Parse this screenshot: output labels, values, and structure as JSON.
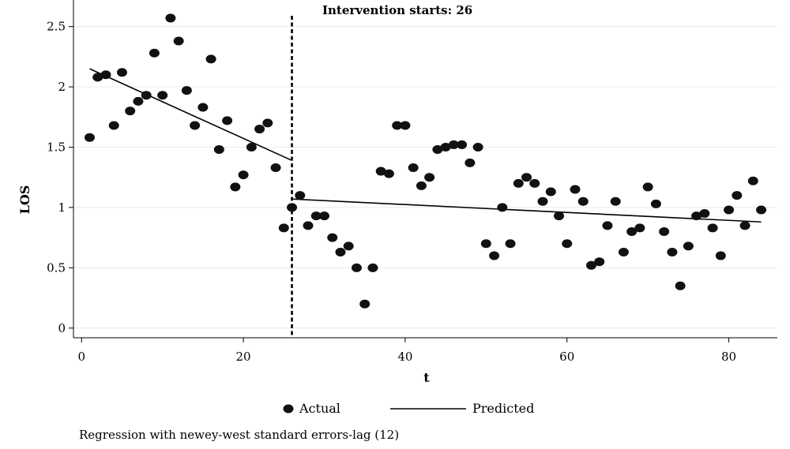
{
  "chart_data": {
    "type": "scatter",
    "title": "",
    "xlabel": "t",
    "ylabel": "LOS",
    "xlim": [
      -1,
      86
    ],
    "ylim": [
      -0.08,
      2.72
    ],
    "x_ticks": [
      0,
      20,
      40,
      60,
      80
    ],
    "x_tick_labels": [
      "0",
      "20",
      "40",
      "60",
      "80"
    ],
    "y_ticks": [
      0,
      0.5,
      1,
      1.5,
      2,
      2.5
    ],
    "y_tick_labels": [
      "0",
      "0.5",
      "1",
      "1.5",
      "2",
      "2.5"
    ],
    "grid": true,
    "legend_position": "bottom",
    "intervention": {
      "x": 26,
      "label": "Intervention starts: 26"
    },
    "series": [
      {
        "name": "Actual",
        "kind": "scatter",
        "x": [
          1,
          2,
          3,
          4,
          5,
          6,
          7,
          8,
          9,
          10,
          11,
          12,
          13,
          14,
          15,
          16,
          17,
          18,
          19,
          20,
          21,
          22,
          23,
          24,
          25,
          26,
          27,
          28,
          29,
          30,
          31,
          32,
          33,
          34,
          35,
          36,
          37,
          38,
          39,
          40,
          41,
          42,
          43,
          44,
          45,
          46,
          47,
          48,
          49,
          50,
          51,
          52,
          53,
          54,
          55,
          56,
          57,
          58,
          59,
          60,
          61,
          62,
          63,
          64,
          65,
          66,
          67,
          68,
          69,
          70,
          71,
          72,
          73,
          74,
          75,
          76,
          77,
          78,
          79,
          80,
          81,
          82,
          83,
          84
        ],
        "y": [
          1.58,
          2.08,
          2.1,
          1.68,
          2.12,
          1.8,
          1.88,
          1.93,
          2.28,
          1.93,
          2.57,
          2.38,
          1.97,
          1.68,
          1.83,
          2.23,
          1.48,
          1.72,
          1.17,
          1.27,
          1.5,
          1.65,
          1.7,
          1.33,
          0.83,
          1.0,
          1.1,
          0.85,
          0.93,
          0.93,
          0.75,
          0.63,
          0.68,
          0.5,
          0.2,
          0.5,
          1.3,
          1.28,
          1.68,
          1.68,
          1.33,
          1.18,
          1.25,
          1.48,
          1.5,
          1.52,
          1.52,
          1.37,
          1.5,
          0.7,
          0.6,
          1.0,
          0.7,
          1.2,
          1.25,
          1.2,
          1.05,
          1.13,
          0.93,
          0.7,
          1.15,
          1.05,
          0.52,
          0.55,
          0.85,
          1.05,
          0.63,
          0.8,
          0.83,
          1.17,
          1.03,
          0.8,
          0.63,
          0.35,
          0.68,
          0.93,
          0.95,
          0.83,
          0.6,
          0.98,
          1.1,
          0.85,
          1.22,
          0.98
        ]
      },
      {
        "name": "Predicted",
        "kind": "line",
        "segments": [
          {
            "x": [
              1,
              26
            ],
            "y": [
              2.15,
              1.39
            ]
          },
          {
            "x": [
              26,
              84
            ],
            "y": [
              1.07,
              0.88
            ]
          }
        ]
      }
    ],
    "footnote": "Regression with newey-west standard errors-lag (12)"
  }
}
